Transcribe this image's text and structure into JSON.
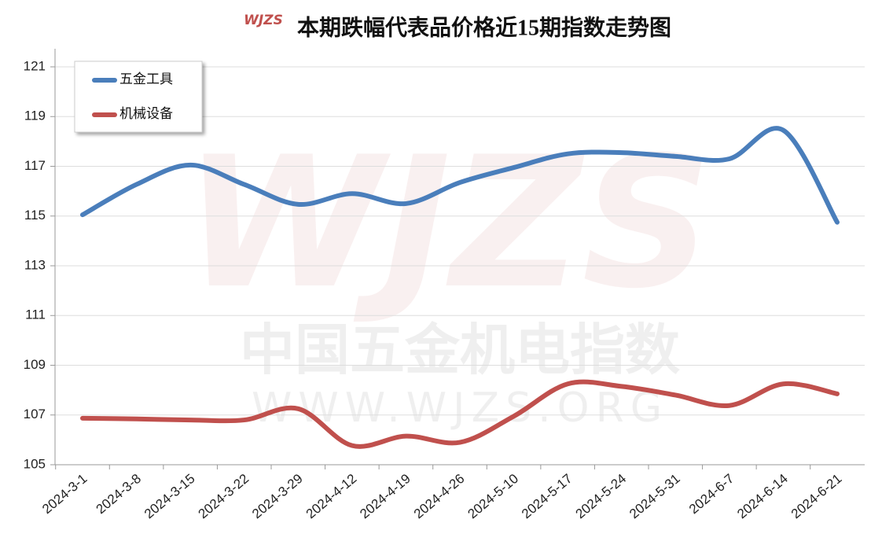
{
  "chart_data": {
    "type": "line",
    "title": "本期跌幅代表品价格近15期指数走势图",
    "logo": "WJZS",
    "watermark": [
      "中国五金机电指数",
      "WWW.WJZS.ORG"
    ],
    "categories": [
      "2024-3-1",
      "2024-3-8",
      "2024-3-15",
      "2024-3-22",
      "2024-3-29",
      "2024-4-12",
      "2024-4-19",
      "2024-4-26",
      "2024-5-10",
      "2024-5-17",
      "2024-5-24",
      "2024-5-31",
      "2024-6-7",
      "2024-6-14",
      "2024-6-21"
    ],
    "series": [
      {
        "name": "五金工具",
        "color": "#4a7ebb",
        "values": [
          115.05,
          116.27,
          117.05,
          116.27,
          115.47,
          115.9,
          115.5,
          116.35,
          116.95,
          117.5,
          117.55,
          117.4,
          117.3,
          118.45,
          114.75
        ]
      },
      {
        "name": "机械设备",
        "color": "#c0504d",
        "values": [
          106.87,
          106.84,
          106.8,
          106.8,
          107.25,
          105.77,
          106.15,
          105.9,
          106.95,
          108.25,
          108.15,
          107.8,
          107.38,
          108.25,
          107.85
        ]
      }
    ],
    "ylim": [
      105,
      121
    ],
    "yticks": [
      105,
      107,
      109,
      111,
      113,
      115,
      117,
      119,
      121
    ],
    "grid": true,
    "legend": "top-left"
  }
}
